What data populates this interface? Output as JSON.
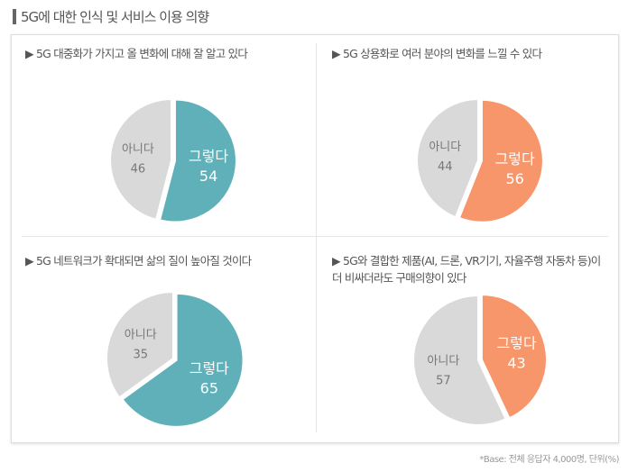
{
  "title": "5G에 대한 인식 및 서비스 이용 의향",
  "footnote": "*Base: 전체 응답자 4,000명, 단위(%)",
  "chart_data": [
    {
      "type": "pie",
      "title": "▶ 5G 대중화가 가지고 올 변화에 대해 잘 알고 있다",
      "slices": [
        {
          "label": "그렇다",
          "value": 54,
          "color": "#5fb0b8"
        },
        {
          "label": "아니다",
          "value": 46,
          "color": "#d9d9d9"
        }
      ]
    },
    {
      "type": "pie",
      "title": "▶ 5G 상용화로 여러 분야의 변화를 느낄 수 있다",
      "slices": [
        {
          "label": "그렇다",
          "value": 56,
          "color": "#f7966a"
        },
        {
          "label": "아니다",
          "value": 44,
          "color": "#d9d9d9"
        }
      ]
    },
    {
      "type": "pie",
      "title": "▶ 5G 네트워크가 확대되면 삶의 질이 높아질 것이다",
      "slices": [
        {
          "label": "그렇다",
          "value": 65,
          "color": "#5fb0b8"
        },
        {
          "label": "아니다",
          "value": 35,
          "color": "#d9d9d9"
        }
      ]
    },
    {
      "type": "pie",
      "title": "▶ 5G와 결합한 제품(AI, 드론, VR기기, 자율주행 자동차 등)이 더 비싸더라도 구매의향이 있다",
      "slices": [
        {
          "label": "그렇다",
          "value": 43,
          "color": "#f7966a"
        },
        {
          "label": "아니다",
          "value": 57,
          "color": "#d9d9d9"
        }
      ]
    }
  ]
}
